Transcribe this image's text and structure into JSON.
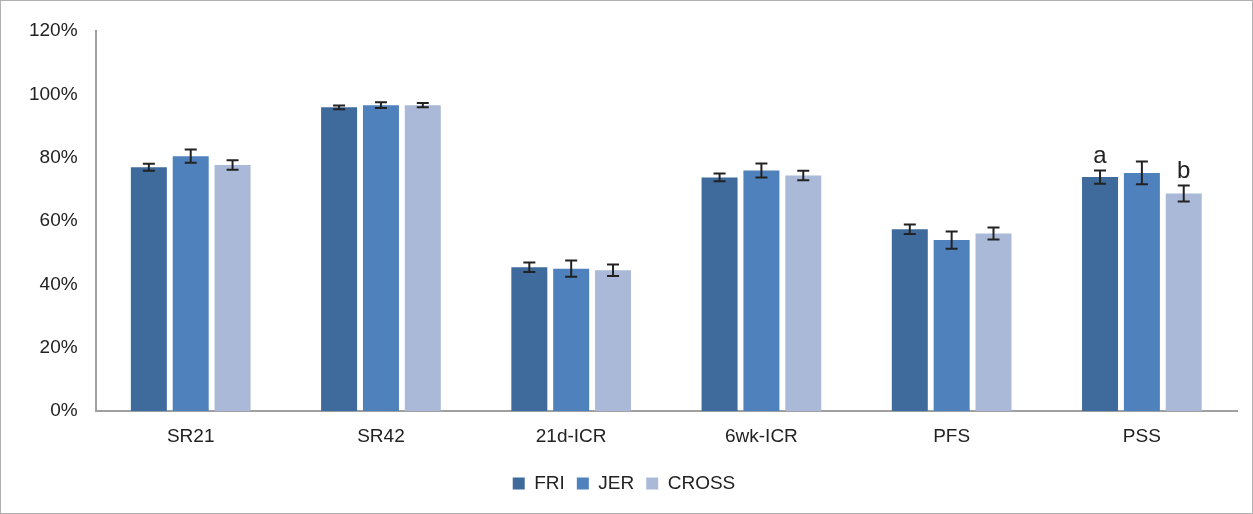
{
  "chart_data": {
    "type": "bar",
    "categories": [
      "SR21",
      "SR42",
      "21d-ICR",
      "6wk-ICR",
      "PFS",
      "PSS"
    ],
    "series": [
      {
        "name": "FRI",
        "color": "#3f6a9c",
        "values": [
          77.0,
          95.9,
          45.4,
          73.8,
          57.4,
          73.9
        ],
        "errors": [
          1.1,
          0.6,
          1.5,
          1.2,
          1.5,
          2.1
        ]
      },
      {
        "name": "JER",
        "color": "#4f81bd",
        "values": [
          80.5,
          96.6,
          45.0,
          76.0,
          54.0,
          75.2
        ],
        "errors": [
          2.1,
          0.9,
          2.6,
          2.2,
          2.7,
          3.6
        ]
      },
      {
        "name": "CROSS",
        "color": "#aab9d7",
        "values": [
          77.7,
          96.6,
          44.5,
          74.4,
          56.1,
          68.7
        ],
        "errors": [
          1.5,
          0.7,
          1.8,
          1.5,
          1.9,
          2.5
        ]
      }
    ],
    "ylim": [
      0,
      120
    ],
    "yticks": [
      {
        "value": 0,
        "label": "0%"
      },
      {
        "value": 20,
        "label": "20%"
      },
      {
        "value": 40,
        "label": "40%"
      },
      {
        "value": 60,
        "label": "60%"
      },
      {
        "value": 80,
        "label": "80%"
      },
      {
        "value": 100,
        "label": "100%"
      },
      {
        "value": 120,
        "label": "120%"
      }
    ],
    "annotations": [
      {
        "text": "a",
        "x": "PSS",
        "y": 76.0
      },
      {
        "text": "b",
        "x": "PSS",
        "y": 71.2
      }
    ],
    "grid": false,
    "legend": "bottom"
  }
}
